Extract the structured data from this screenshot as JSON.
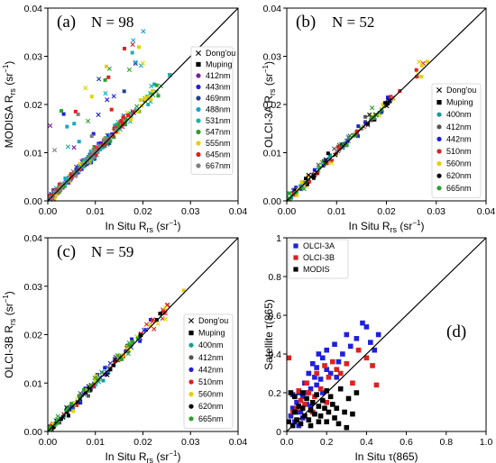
{
  "chart_data": [
    {
      "type": "scatter",
      "panel": "(a)",
      "n_label": "N = 98",
      "xlabel": "In Situ R_rs (sr^-1)",
      "ylabel": "MODISA R_rs (sr^-1)",
      "xlim": [
        0,
        0.04
      ],
      "ylim": [
        0,
        0.04
      ],
      "xticks": [
        "0.00",
        "0.01",
        "0.02",
        "0.03",
        "0.04"
      ],
      "yticks": [
        "0.00",
        "0.01",
        "0.02",
        "0.03",
        "0.04"
      ],
      "one_to_one_line": true,
      "legend_position": "lower-right",
      "legend": [
        {
          "name": "Dong'ou",
          "marker": "x",
          "color": "#000000"
        },
        {
          "name": "Muping",
          "marker": "square",
          "color": "#000000"
        },
        {
          "name": "412nm",
          "marker": "circle",
          "color": "#7b1fa2"
        },
        {
          "name": "443nm",
          "marker": "circle",
          "color": "#1f1fe0"
        },
        {
          "name": "469nm",
          "marker": "circle",
          "color": "#1e3f9e"
        },
        {
          "name": "488nm",
          "marker": "circle",
          "color": "#17a8c4"
        },
        {
          "name": "531nm",
          "marker": "circle",
          "color": "#20b2aa"
        },
        {
          "name": "547nm",
          "marker": "circle",
          "color": "#2ca02c"
        },
        {
          "name": "555nm",
          "marker": "circle",
          "color": "#e6d000"
        },
        {
          "name": "645nm",
          "marker": "circle",
          "color": "#e02020"
        },
        {
          "name": "667nm",
          "marker": "circle",
          "color": "#808080"
        }
      ]
    },
    {
      "type": "scatter",
      "panel": "(b)",
      "n_label": "N = 52",
      "xlabel": "In Situ R_rs (sr^-1)",
      "ylabel": "OLCI-3A R_rs (sr^-1)",
      "xlim": [
        0,
        0.04
      ],
      "ylim": [
        0,
        0.04
      ],
      "xticks": [
        "0.00",
        "0.01",
        "0.02",
        "0.03",
        "0.04"
      ],
      "yticks": [
        "0.00",
        "0.01",
        "0.02",
        "0.03",
        "0.04"
      ],
      "one_to_one_line": true,
      "legend_position": "lower-right",
      "legend": [
        {
          "name": "Dong'ou",
          "marker": "x",
          "color": "#000000"
        },
        {
          "name": "Muping",
          "marker": "square",
          "color": "#000000"
        },
        {
          "name": "400nm",
          "marker": "circle",
          "color": "#1a9a9a"
        },
        {
          "name": "412nm",
          "marker": "circle",
          "color": "#555555"
        },
        {
          "name": "442nm",
          "marker": "circle",
          "color": "#1f1fe0"
        },
        {
          "name": "510nm",
          "marker": "circle",
          "color": "#e02020"
        },
        {
          "name": "560nm",
          "marker": "circle",
          "color": "#e6d000"
        },
        {
          "name": "620nm",
          "marker": "circle",
          "color": "#000000"
        },
        {
          "name": "665nm",
          "marker": "circle",
          "color": "#2ca02c"
        }
      ]
    },
    {
      "type": "scatter",
      "panel": "(c)",
      "n_label": "N = 59",
      "xlabel": "In Situ R_rs (sr^-1)",
      "ylabel": "OLCI-3B R_rs (sr^-1)",
      "xlim": [
        0,
        0.04
      ],
      "ylim": [
        0,
        0.04
      ],
      "xticks": [
        "0.00",
        "0.01",
        "0.02",
        "0.03",
        "0.04"
      ],
      "yticks": [
        "0.00",
        "0.01",
        "0.02",
        "0.03",
        "0.04"
      ],
      "one_to_one_line": true,
      "legend_position": "lower-right",
      "legend": [
        {
          "name": "Dong'ou",
          "marker": "x",
          "color": "#000000"
        },
        {
          "name": "Muping",
          "marker": "square",
          "color": "#000000"
        },
        {
          "name": "400nm",
          "marker": "circle",
          "color": "#1a9a9a"
        },
        {
          "name": "412nm",
          "marker": "circle",
          "color": "#555555"
        },
        {
          "name": "442nm",
          "marker": "circle",
          "color": "#1f1fe0"
        },
        {
          "name": "510nm",
          "marker": "circle",
          "color": "#e02020"
        },
        {
          "name": "560nm",
          "marker": "circle",
          "color": "#e6d000"
        },
        {
          "name": "620nm",
          "marker": "circle",
          "color": "#000000"
        },
        {
          "name": "665nm",
          "marker": "circle",
          "color": "#2ca02c"
        }
      ]
    },
    {
      "type": "scatter",
      "panel": "(d)",
      "xlabel": "In Situ τ(865)",
      "ylabel": "Satellite τ(865)",
      "xlim": [
        0,
        1.0
      ],
      "ylim": [
        0,
        1.0
      ],
      "xticks": [
        "0.0",
        "0.2",
        "0.4",
        "0.6",
        "0.8",
        "1.0"
      ],
      "yticks": [
        "0",
        "0.2",
        "0.4",
        "0.6",
        "0.8",
        "1"
      ],
      "one_to_one_line": true,
      "legend_position": "upper-left",
      "legend": [
        {
          "name": "OLCI-3A",
          "marker": "square",
          "color": "#1f1fe0"
        },
        {
          "name": "OLCI-3B",
          "marker": "square",
          "color": "#e02020"
        },
        {
          "name": "MODIS",
          "marker": "square",
          "color": "#000000"
        }
      ],
      "series": [
        {
          "name": "OLCI-3A",
          "points": [
            [
              0.02,
              0.08
            ],
            [
              0.03,
              0.12
            ],
            [
              0.04,
              0.05
            ],
            [
              0.05,
              0.15
            ],
            [
              0.06,
              0.2
            ],
            [
              0.07,
              0.1
            ],
            [
              0.08,
              0.18
            ],
            [
              0.09,
              0.25
            ],
            [
              0.1,
              0.14
            ],
            [
              0.11,
              0.3
            ],
            [
              0.12,
              0.22
            ],
            [
              0.13,
              0.35
            ],
            [
              0.14,
              0.28
            ],
            [
              0.15,
              0.33
            ],
            [
              0.16,
              0.4
            ],
            [
              0.17,
              0.27
            ],
            [
              0.18,
              0.38
            ],
            [
              0.2,
              0.42
            ],
            [
              0.22,
              0.3
            ],
            [
              0.24,
              0.45
            ],
            [
              0.26,
              0.36
            ],
            [
              0.28,
              0.4
            ],
            [
              0.3,
              0.5
            ],
            [
              0.32,
              0.44
            ],
            [
              0.35,
              0.48
            ],
            [
              0.38,
              0.56
            ],
            [
              0.4,
              0.54
            ],
            [
              0.42,
              0.46
            ],
            [
              0.44,
              0.42
            ],
            [
              0.46,
              0.5
            ],
            [
              0.05,
              0.1
            ],
            [
              0.08,
              0.07
            ],
            [
              0.1,
              0.2
            ],
            [
              0.12,
              0.13
            ],
            [
              0.15,
              0.24
            ],
            [
              0.18,
              0.2
            ],
            [
              0.2,
              0.32
            ],
            [
              0.25,
              0.28
            ],
            [
              0.03,
              0.19
            ],
            [
              0.06,
              0.03
            ]
          ]
        },
        {
          "name": "OLCI-3B",
          "points": [
            [
              0.01,
              0.38
            ],
            [
              0.03,
              0.1
            ],
            [
              0.05,
              0.12
            ],
            [
              0.07,
              0.16
            ],
            [
              0.09,
              0.14
            ],
            [
              0.11,
              0.2
            ],
            [
              0.13,
              0.1
            ],
            [
              0.15,
              0.3
            ],
            [
              0.17,
              0.22
            ],
            [
              0.19,
              0.34
            ],
            [
              0.21,
              0.28
            ],
            [
              0.23,
              0.36
            ],
            [
              0.25,
              0.32
            ],
            [
              0.27,
              0.3
            ],
            [
              0.3,
              0.35
            ],
            [
              0.33,
              0.25
            ],
            [
              0.36,
              0.42
            ],
            [
              0.4,
              0.38
            ],
            [
              0.43,
              0.34
            ],
            [
              0.45,
              0.24
            ],
            [
              0.06,
              0.21
            ],
            [
              0.1,
              0.25
            ],
            [
              0.14,
              0.18
            ],
            [
              0.2,
              0.15
            ]
          ]
        },
        {
          "name": "MODIS",
          "points": [
            [
              0.01,
              0.05
            ],
            [
              0.02,
              0.2
            ],
            [
              0.03,
              0.03
            ],
            [
              0.04,
              0.1
            ],
            [
              0.05,
              0.06
            ],
            [
              0.06,
              0.13
            ],
            [
              0.07,
              0.04
            ],
            [
              0.08,
              0.12
            ],
            [
              0.09,
              0.08
            ],
            [
              0.1,
              0.17
            ],
            [
              0.11,
              0.06
            ],
            [
              0.12,
              0.11
            ],
            [
              0.13,
              0.15
            ],
            [
              0.14,
              0.09
            ],
            [
              0.15,
              0.19
            ],
            [
              0.16,
              0.13
            ],
            [
              0.17,
              0.08
            ],
            [
              0.18,
              0.16
            ],
            [
              0.19,
              0.12
            ],
            [
              0.2,
              0.21
            ],
            [
              0.21,
              0.1
            ],
            [
              0.22,
              0.18
            ],
            [
              0.23,
              0.14
            ],
            [
              0.24,
              0.07
            ],
            [
              0.25,
              0.12
            ],
            [
              0.27,
              0.22
            ],
            [
              0.29,
              0.1
            ],
            [
              0.31,
              0.17
            ],
            [
              0.33,
              0.09
            ],
            [
              0.35,
              0.2
            ],
            [
              0.04,
              0.18
            ],
            [
              0.08,
              0.2
            ],
            [
              0.12,
              0.03
            ],
            [
              0.16,
              0.05
            ],
            [
              0.2,
              0.05
            ],
            [
              0.26,
              0.04
            ],
            [
              0.3,
              0.02
            ]
          ]
        }
      ]
    }
  ]
}
